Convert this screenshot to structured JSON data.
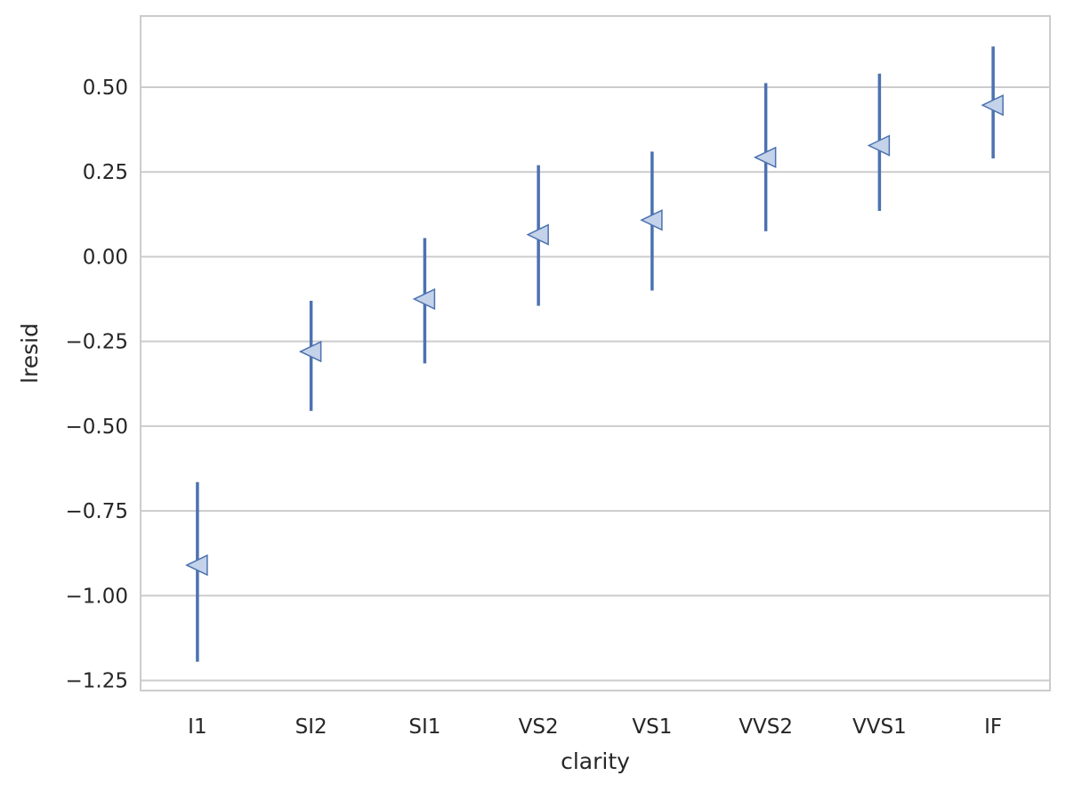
{
  "chart_data": {
    "type": "scatter",
    "title": "",
    "xlabel": "clarity",
    "ylabel": "lresid",
    "categories": [
      "I1",
      "SI2",
      "SI1",
      "VS2",
      "VS1",
      "VVS2",
      "VVS1",
      "IF"
    ],
    "series": [
      {
        "values": [
          -0.91,
          -0.28,
          -0.125,
          0.065,
          0.108,
          0.293,
          0.328,
          0.447
        ],
        "error_low": [
          -1.195,
          -0.455,
          -0.315,
          -0.145,
          -0.1,
          0.075,
          0.135,
          0.29
        ],
        "error_high": [
          -0.665,
          -0.13,
          0.055,
          0.27,
          0.31,
          0.512,
          0.54,
          0.62
        ]
      }
    ],
    "yticks": [
      -1.25,
      -1.0,
      -0.75,
      -0.5,
      -0.25,
      0.0,
      0.25,
      0.5
    ],
    "ytick_labels": [
      "−1.25",
      "−1.00",
      "−0.75",
      "−0.50",
      "−0.25",
      "0.00",
      "0.25",
      "0.50"
    ],
    "ylim": [
      -1.28,
      0.71
    ],
    "grid": "horizontal",
    "marker": "triangle-left",
    "colors": {
      "line": "#4c72b0",
      "marker_fill": "#c4d3ea",
      "grid": "#cccccc",
      "frame": "#cccccc",
      "text": "#262626"
    }
  }
}
